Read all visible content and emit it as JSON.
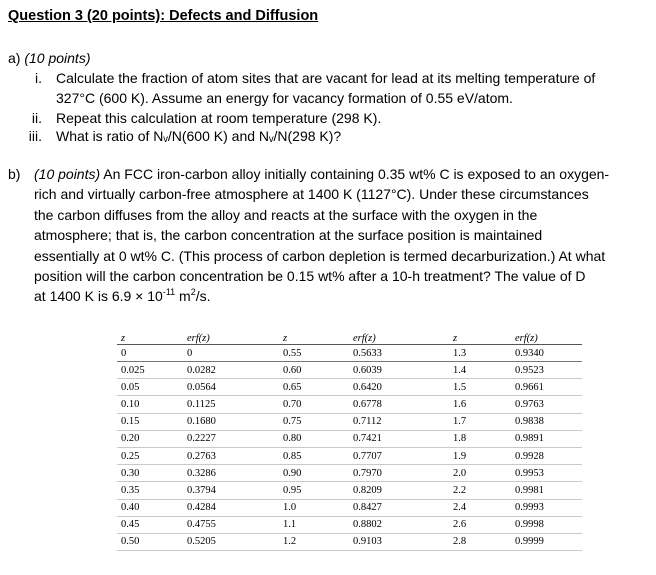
{
  "title": "Question 3 (20 points): Defects and Diffusion",
  "part_a": {
    "label": "a)",
    "points": "(10 points)",
    "items": [
      {
        "num": "i.",
        "lines": [
          "Calculate the fraction of atom sites that are vacant for lead at its melting temperature of",
          "327°C (600 K).  Assume an energy for vacancy formation of 0.55 eV/atom."
        ]
      },
      {
        "num": "ii.",
        "lines": [
          "Repeat this calculation at room temperature (298 K)."
        ]
      },
      {
        "num": "iii.",
        "lines": [
          "What is ratio of Nᵥ/N(600 K) and Nᵥ/N(298 K)?"
        ]
      }
    ]
  },
  "part_b": {
    "label": "b)",
    "points": "(10 points)",
    "first_line": "An FCC iron-carbon alloy initially containing 0.35 wt% C is exposed to an oxygen-",
    "lines": [
      "rich and virtually carbon-free atmosphere at 1400 K (1127°C).  Under these circumstances",
      "the carbon diffuses from the alloy and reacts at the surface with the oxygen in the",
      "atmosphere; that is, the carbon concentration at the surface position is maintained",
      "essentially at 0 wt% C. (This process of carbon depletion is termed decarburization.) At what",
      "position will the carbon concentration be 0.15 wt% after a 10-h treatment?  The value of D"
    ],
    "last_line_prefix": "at 1400 K is 6.9 × 10",
    "last_line_exp": "-11",
    "last_line_mid": " m",
    "last_line_exp2": "2",
    "last_line_suffix": "/s."
  },
  "table": {
    "headers": [
      "z",
      "erf(z)",
      "z",
      "erf(z)",
      "z",
      "erf(z)"
    ],
    "rows": [
      [
        "0",
        "0",
        "0.55",
        "0.5633",
        "1.3",
        "0.9340"
      ],
      [
        "0.025",
        "0.0282",
        "0.60",
        "0.6039",
        "1.4",
        "0.9523"
      ],
      [
        "0.05",
        "0.0564",
        "0.65",
        "0.6420",
        "1.5",
        "0.9661"
      ],
      [
        "0.10",
        "0.1125",
        "0.70",
        "0.6778",
        "1.6",
        "0.9763"
      ],
      [
        "0.15",
        "0.1680",
        "0.75",
        "0.7112",
        "1.7",
        "0.9838"
      ],
      [
        "0.20",
        "0.2227",
        "0.80",
        "0.7421",
        "1.8",
        "0.9891"
      ],
      [
        "0.25",
        "0.2763",
        "0.85",
        "0.7707",
        "1.9",
        "0.9928"
      ],
      [
        "0.30",
        "0.3286",
        "0.90",
        "0.7970",
        "2.0",
        "0.9953"
      ],
      [
        "0.35",
        "0.3794",
        "0.95",
        "0.8209",
        "2.2",
        "0.9981"
      ],
      [
        "0.40",
        "0.4284",
        "1.0",
        "0.8427",
        "2.4",
        "0.9993"
      ],
      [
        "0.45",
        "0.4755",
        "1.1",
        "0.8802",
        "2.6",
        "0.9998"
      ],
      [
        "0.50",
        "0.5205",
        "1.2",
        "0.9103",
        "2.8",
        "0.9999"
      ]
    ]
  }
}
